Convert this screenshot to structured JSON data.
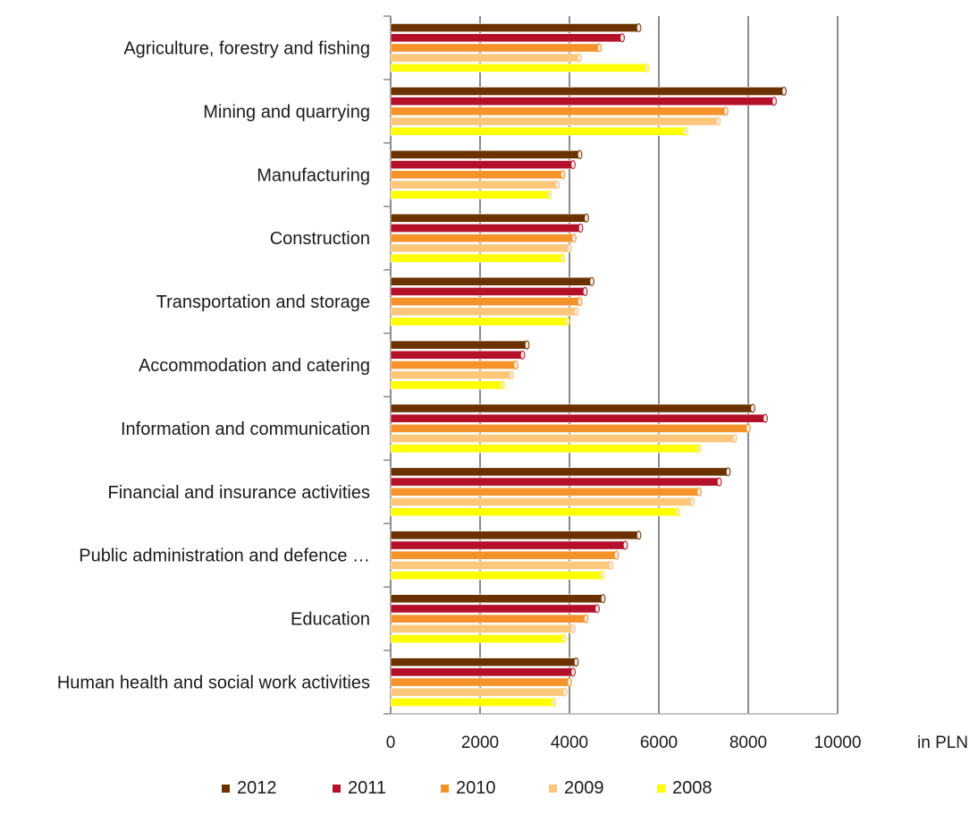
{
  "chart_data": {
    "type": "bar",
    "orientation": "horizontal",
    "categories": [
      "Agriculture, forestry and fishing",
      "Mining and quarrying",
      "Manufacturing",
      "Construction",
      "Transportation and storage",
      "Accommodation and catering",
      "Information and communication",
      "Financial and insurance activities",
      "Public administration and defence …",
      "Education",
      "Human health and social work activities"
    ],
    "series": [
      {
        "name": "2012",
        "color": "#6b3200",
        "values": [
          5550,
          8800,
          4230,
          4380,
          4500,
          3050,
          8100,
          7550,
          5550,
          4750,
          4150
        ]
      },
      {
        "name": "2011",
        "color": "#b5102a",
        "values": [
          5180,
          8580,
          4080,
          4250,
          4350,
          2950,
          8380,
          7350,
          5250,
          4620,
          4080
        ]
      },
      {
        "name": "2010",
        "color": "#f5922a",
        "values": [
          4670,
          7500,
          3850,
          4100,
          4230,
          2800,
          8000,
          6900,
          5050,
          4370,
          4000
        ]
      },
      {
        "name": "2009",
        "color": "#fcc77a",
        "values": [
          4220,
          7330,
          3730,
          4000,
          4150,
          2700,
          7700,
          6750,
          4930,
          4080,
          3900
        ]
      },
      {
        "name": "2008",
        "color": "#ffff00",
        "values": [
          5730,
          6600,
          3550,
          3850,
          3950,
          2500,
          6900,
          6430,
          4730,
          3880,
          3650
        ]
      }
    ],
    "x_ticks": [
      "0",
      "2000",
      "4000",
      "6000",
      "8000",
      "10000"
    ],
    "xlim": [
      0,
      10000
    ],
    "xlabel": "in PLN",
    "grid": "vertical",
    "legend_position": "bottom"
  }
}
